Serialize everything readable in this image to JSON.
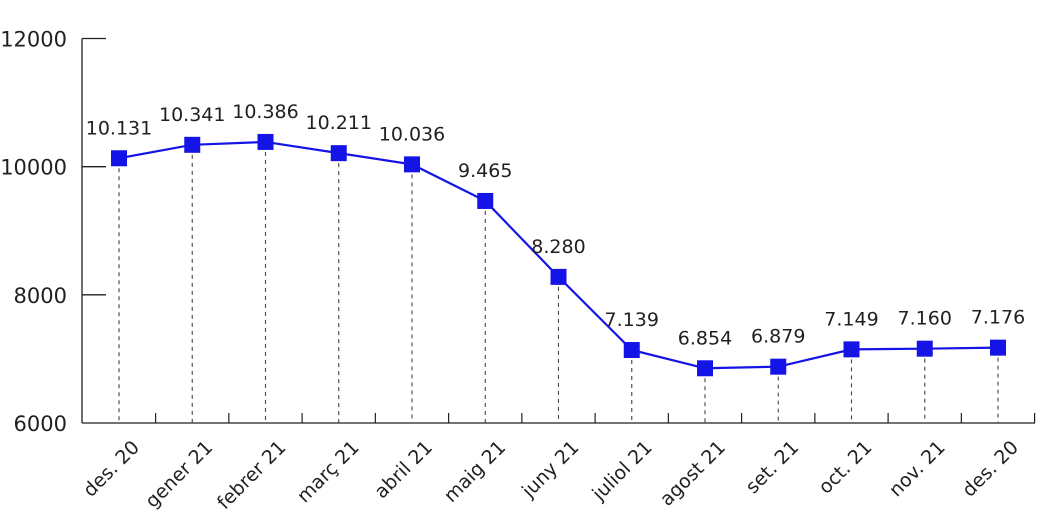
{
  "chart_data": {
    "type": "line",
    "title": "",
    "xlabel": "",
    "ylabel": "",
    "ylim": [
      6000,
      12000
    ],
    "yticks": [
      6000,
      8000,
      10000,
      12000
    ],
    "ytick_labels": [
      "6000",
      "8000",
      "10000",
      "12000"
    ],
    "categories": [
      "des. 20",
      "gener 21",
      "febrer 21",
      "març 21",
      "abril 21",
      "maig 21",
      "juny 21",
      "juliol 21",
      "agost 21",
      "set. 21",
      "oct. 21",
      "nov. 21",
      "des. 20"
    ],
    "series": [
      {
        "name": "",
        "color": "#1414e6",
        "values": [
          10131,
          10341,
          10386,
          10211,
          10036,
          9465,
          8280,
          7139,
          6854,
          6879,
          7149,
          7160,
          7176
        ],
        "labels": [
          "10.131",
          "10.341",
          "10.386",
          "10.211",
          "10.036",
          "9.465",
          "8.280",
          "7.139",
          "6.854",
          "6.879",
          "7.149",
          "7.160",
          "7.176"
        ]
      }
    ],
    "grid": false,
    "legend": "none"
  }
}
